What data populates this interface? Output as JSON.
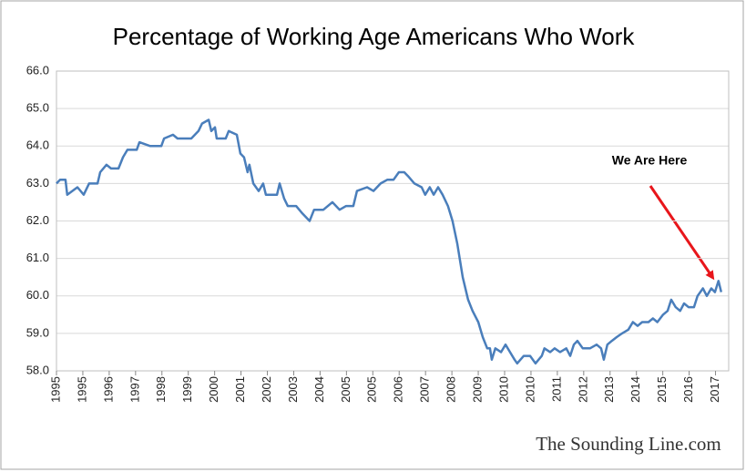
{
  "chart_data": {
    "type": "line",
    "title": "Percentage of Working Age Americans Who Work",
    "annotation": "We Are Here",
    "watermark": "The Sounding Line.com",
    "grid": true,
    "xlim": [
      1995,
      2017.44
    ],
    "ylim": [
      58,
      66
    ],
    "yticks": [
      {
        "value": 58,
        "label": "58.0"
      },
      {
        "value": 59,
        "label": "59.0"
      },
      {
        "value": 60,
        "label": "60.0"
      },
      {
        "value": 61,
        "label": "61.0"
      },
      {
        "value": 62,
        "label": "62.0"
      },
      {
        "value": 63,
        "label": "63.0"
      },
      {
        "value": 64,
        "label": "64.0"
      },
      {
        "value": 65,
        "label": "65.0"
      },
      {
        "value": 66,
        "label": "66.0"
      }
    ],
    "xticks": [
      1995,
      {
        "value": 1995.88,
        "label": "1995"
      },
      {
        "value": 1996.76,
        "label": "1996"
      },
      {
        "value": 1997.64,
        "label": "1997"
      },
      {
        "value": 1998.52,
        "label": "1998"
      },
      {
        "value": 1999.4,
        "label": "1999"
      },
      {
        "value": 2000.28,
        "label": "2000"
      },
      {
        "value": 2001.16,
        "label": "2001"
      },
      {
        "value": 2002.04,
        "label": "2002"
      },
      {
        "value": 2002.92,
        "label": "2003"
      },
      {
        "value": 2003.8,
        "label": "2004"
      },
      {
        "value": 2004.68,
        "label": "2005"
      },
      {
        "value": 2005.56,
        "label": "2005"
      },
      {
        "value": 2006.44,
        "label": "2006"
      },
      {
        "value": 2007.32,
        "label": "2007"
      },
      {
        "value": 2008.2,
        "label": "2008"
      },
      {
        "value": 2009.08,
        "label": "2009"
      },
      {
        "value": 2009.96,
        "label": "2010"
      },
      {
        "value": 2010.84,
        "label": "2010"
      },
      {
        "value": 2011.72,
        "label": "2011"
      },
      {
        "value": 2012.6,
        "label": "2012"
      },
      {
        "value": 2013.48,
        "label": "2013"
      },
      {
        "value": 2014.36,
        "label": "2014"
      },
      {
        "value": 2015.24,
        "label": "2015"
      },
      {
        "value": 2016.12,
        "label": "2016"
      },
      2017
    ],
    "series": [
      {
        "color": "#4a7ebb",
        "x": [
          1995.0,
          1995.12,
          1995.3,
          1995.36,
          1995.7,
          1995.91,
          1996.09,
          1996.37,
          1996.46,
          1996.67,
          1996.82,
          1997.07,
          1997.22,
          1997.37,
          1997.68,
          1997.77,
          1998.13,
          1998.5,
          1998.59,
          1998.89,
          1999.04,
          1999.5,
          1999.74,
          1999.86,
          2000.08,
          2000.17,
          2000.29,
          2000.35,
          2000.65,
          2000.75,
          2001.02,
          2001.14,
          2001.26,
          2001.38,
          2001.44,
          2001.57,
          2001.75,
          2001.9,
          2001.99,
          2002.36,
          2002.45,
          2002.6,
          2002.72,
          2003.0,
          2003.21,
          2003.45,
          2003.6,
          2003.91,
          2004.21,
          2004.45,
          2004.67,
          2004.91,
          2005.03,
          2005.37,
          2005.58,
          2005.82,
          2006.04,
          2006.25,
          2006.43,
          2006.61,
          2006.73,
          2006.95,
          2007.19,
          2007.31,
          2007.46,
          2007.59,
          2007.74,
          2007.89,
          2008.07,
          2008.22,
          2008.38,
          2008.56,
          2008.74,
          2008.89,
          2009.08,
          2009.23,
          2009.38,
          2009.47,
          2009.53,
          2009.65,
          2009.84,
          2009.99,
          2010.14,
          2010.29,
          2010.38,
          2010.6,
          2010.81,
          2010.99,
          2011.2,
          2011.29,
          2011.48,
          2011.63,
          2011.81,
          2012.02,
          2012.15,
          2012.27,
          2012.39,
          2012.57,
          2012.81,
          2013.03,
          2013.18,
          2013.27,
          2013.39,
          2013.54,
          2013.7,
          2013.88,
          2014.09,
          2014.24,
          2014.4,
          2014.55,
          2014.76,
          2014.91,
          2015.06,
          2015.25,
          2015.4,
          2015.52,
          2015.67,
          2015.82,
          2015.95,
          2016.1,
          2016.28,
          2016.4,
          2016.58,
          2016.71,
          2016.86,
          2016.98,
          2017.1,
          2017.19
        ],
        "values": [
          63.0,
          63.1,
          63.1,
          62.7,
          62.9,
          62.7,
          63.0,
          63.0,
          63.3,
          63.5,
          63.4,
          63.4,
          63.7,
          63.9,
          63.9,
          64.1,
          64.0,
          64.0,
          64.2,
          64.3,
          64.2,
          64.2,
          64.4,
          64.6,
          64.7,
          64.4,
          64.5,
          64.2,
          64.2,
          64.4,
          64.3,
          63.8,
          63.7,
          63.3,
          63.5,
          63.0,
          62.8,
          63.0,
          62.7,
          62.7,
          63.0,
          62.6,
          62.4,
          62.4,
          62.2,
          62.0,
          62.3,
          62.3,
          62.5,
          62.3,
          62.4,
          62.4,
          62.8,
          62.9,
          62.8,
          63.0,
          63.1,
          63.1,
          63.3,
          63.3,
          63.2,
          63.0,
          62.9,
          62.7,
          62.9,
          62.7,
          62.9,
          62.7,
          62.4,
          62.0,
          61.4,
          60.5,
          59.9,
          59.6,
          59.3,
          58.9,
          58.6,
          58.6,
          58.3,
          58.6,
          58.5,
          58.7,
          58.5,
          58.3,
          58.2,
          58.4,
          58.4,
          58.2,
          58.4,
          58.6,
          58.5,
          58.6,
          58.5,
          58.6,
          58.4,
          58.7,
          58.8,
          58.6,
          58.6,
          58.7,
          58.6,
          58.3,
          58.7,
          58.8,
          58.9,
          59.0,
          59.1,
          59.3,
          59.2,
          59.3,
          59.3,
          59.4,
          59.3,
          59.5,
          59.6,
          59.9,
          59.7,
          59.6,
          59.8,
          59.7,
          59.7,
          60.0,
          60.2,
          60.0,
          60.2,
          60.1,
          60.4,
          60.1
        ]
      }
    ]
  }
}
